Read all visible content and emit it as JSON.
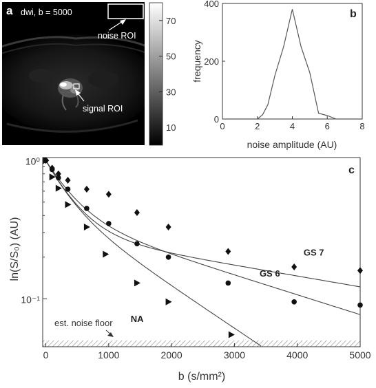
{
  "panel_a": {
    "label": "a",
    "image_caption": "dwi, b = 5000",
    "noise_roi_label": "noise ROI",
    "signal_roi_label": "signal ROI",
    "colorbar_ticks": [
      70,
      50,
      30,
      10
    ],
    "colorbar_range": [
      0,
      80
    ]
  },
  "chart_data": [
    {
      "id": "b",
      "type": "line",
      "panel_label": "b",
      "xlabel": "noise amplitude (AU)",
      "ylabel": "frequency",
      "xlim": [
        0,
        8
      ],
      "ylim": [
        0,
        400
      ],
      "xticks": [
        0,
        2,
        4,
        6,
        8
      ],
      "yticks": [
        0,
        200,
        400
      ],
      "x": [
        0,
        2,
        2.3,
        2.6,
        3.0,
        3.5,
        4.0,
        4.5,
        5.0,
        5.5,
        6.0,
        6.5,
        8
      ],
      "values": [
        0,
        0,
        15,
        50,
        150,
        250,
        380,
        250,
        160,
        20,
        12,
        0,
        0
      ]
    },
    {
      "id": "c",
      "type": "scatter",
      "panel_label": "c",
      "xlabel": "b  (s/mm²)",
      "ylabel": "ln(S/S₀)  (AU)",
      "xlim": [
        -50,
        5000
      ],
      "ylim": [
        0.045,
        1.05
      ],
      "yscale": "log",
      "xticks": [
        0,
        1000,
        2000,
        3000,
        4000,
        5000
      ],
      "ytick_labels": [
        "10⁰",
        "10⁻¹"
      ],
      "noise_floor_label": "est. noise floor",
      "noise_floor_level": 0.05,
      "series": [
        {
          "name": "GS 7",
          "marker": "diamond",
          "x": [
            0,
            100,
            200,
            350,
            650,
            1000,
            1450,
            1950,
            2900,
            3950,
            5000
          ],
          "y": [
            1.0,
            0.88,
            0.8,
            0.72,
            0.62,
            0.57,
            0.42,
            0.33,
            0.22,
            0.17,
            0.16
          ],
          "fit_x": [
            0,
            5000
          ],
          "fit": {
            "a": 0.7,
            "D1": 0.0025,
            "D2": 0.00018
          }
        },
        {
          "name": "GS 6",
          "marker": "circle",
          "x": [
            0,
            100,
            200,
            350,
            650,
            1000,
            1450,
            1950,
            2900,
            3950,
            5000
          ],
          "y": [
            1.0,
            0.86,
            0.75,
            0.62,
            0.45,
            0.35,
            0.25,
            0.2,
            0.13,
            0.095,
            0.09
          ],
          "fit": {
            "a": 0.6,
            "D1": 0.0025,
            "D2": 0.00033
          }
        },
        {
          "name": "NA",
          "marker": "triangle-right",
          "x": [
            0,
            100,
            200,
            350,
            650,
            950,
            1450,
            1950,
            2950
          ],
          "y": [
            1.0,
            0.76,
            0.63,
            0.48,
            0.33,
            0.21,
            0.13,
            0.095,
            0.055
          ],
          "fit": {
            "a": 0.5,
            "D1": 0.003,
            "D2": 0.0007
          }
        }
      ]
    }
  ]
}
